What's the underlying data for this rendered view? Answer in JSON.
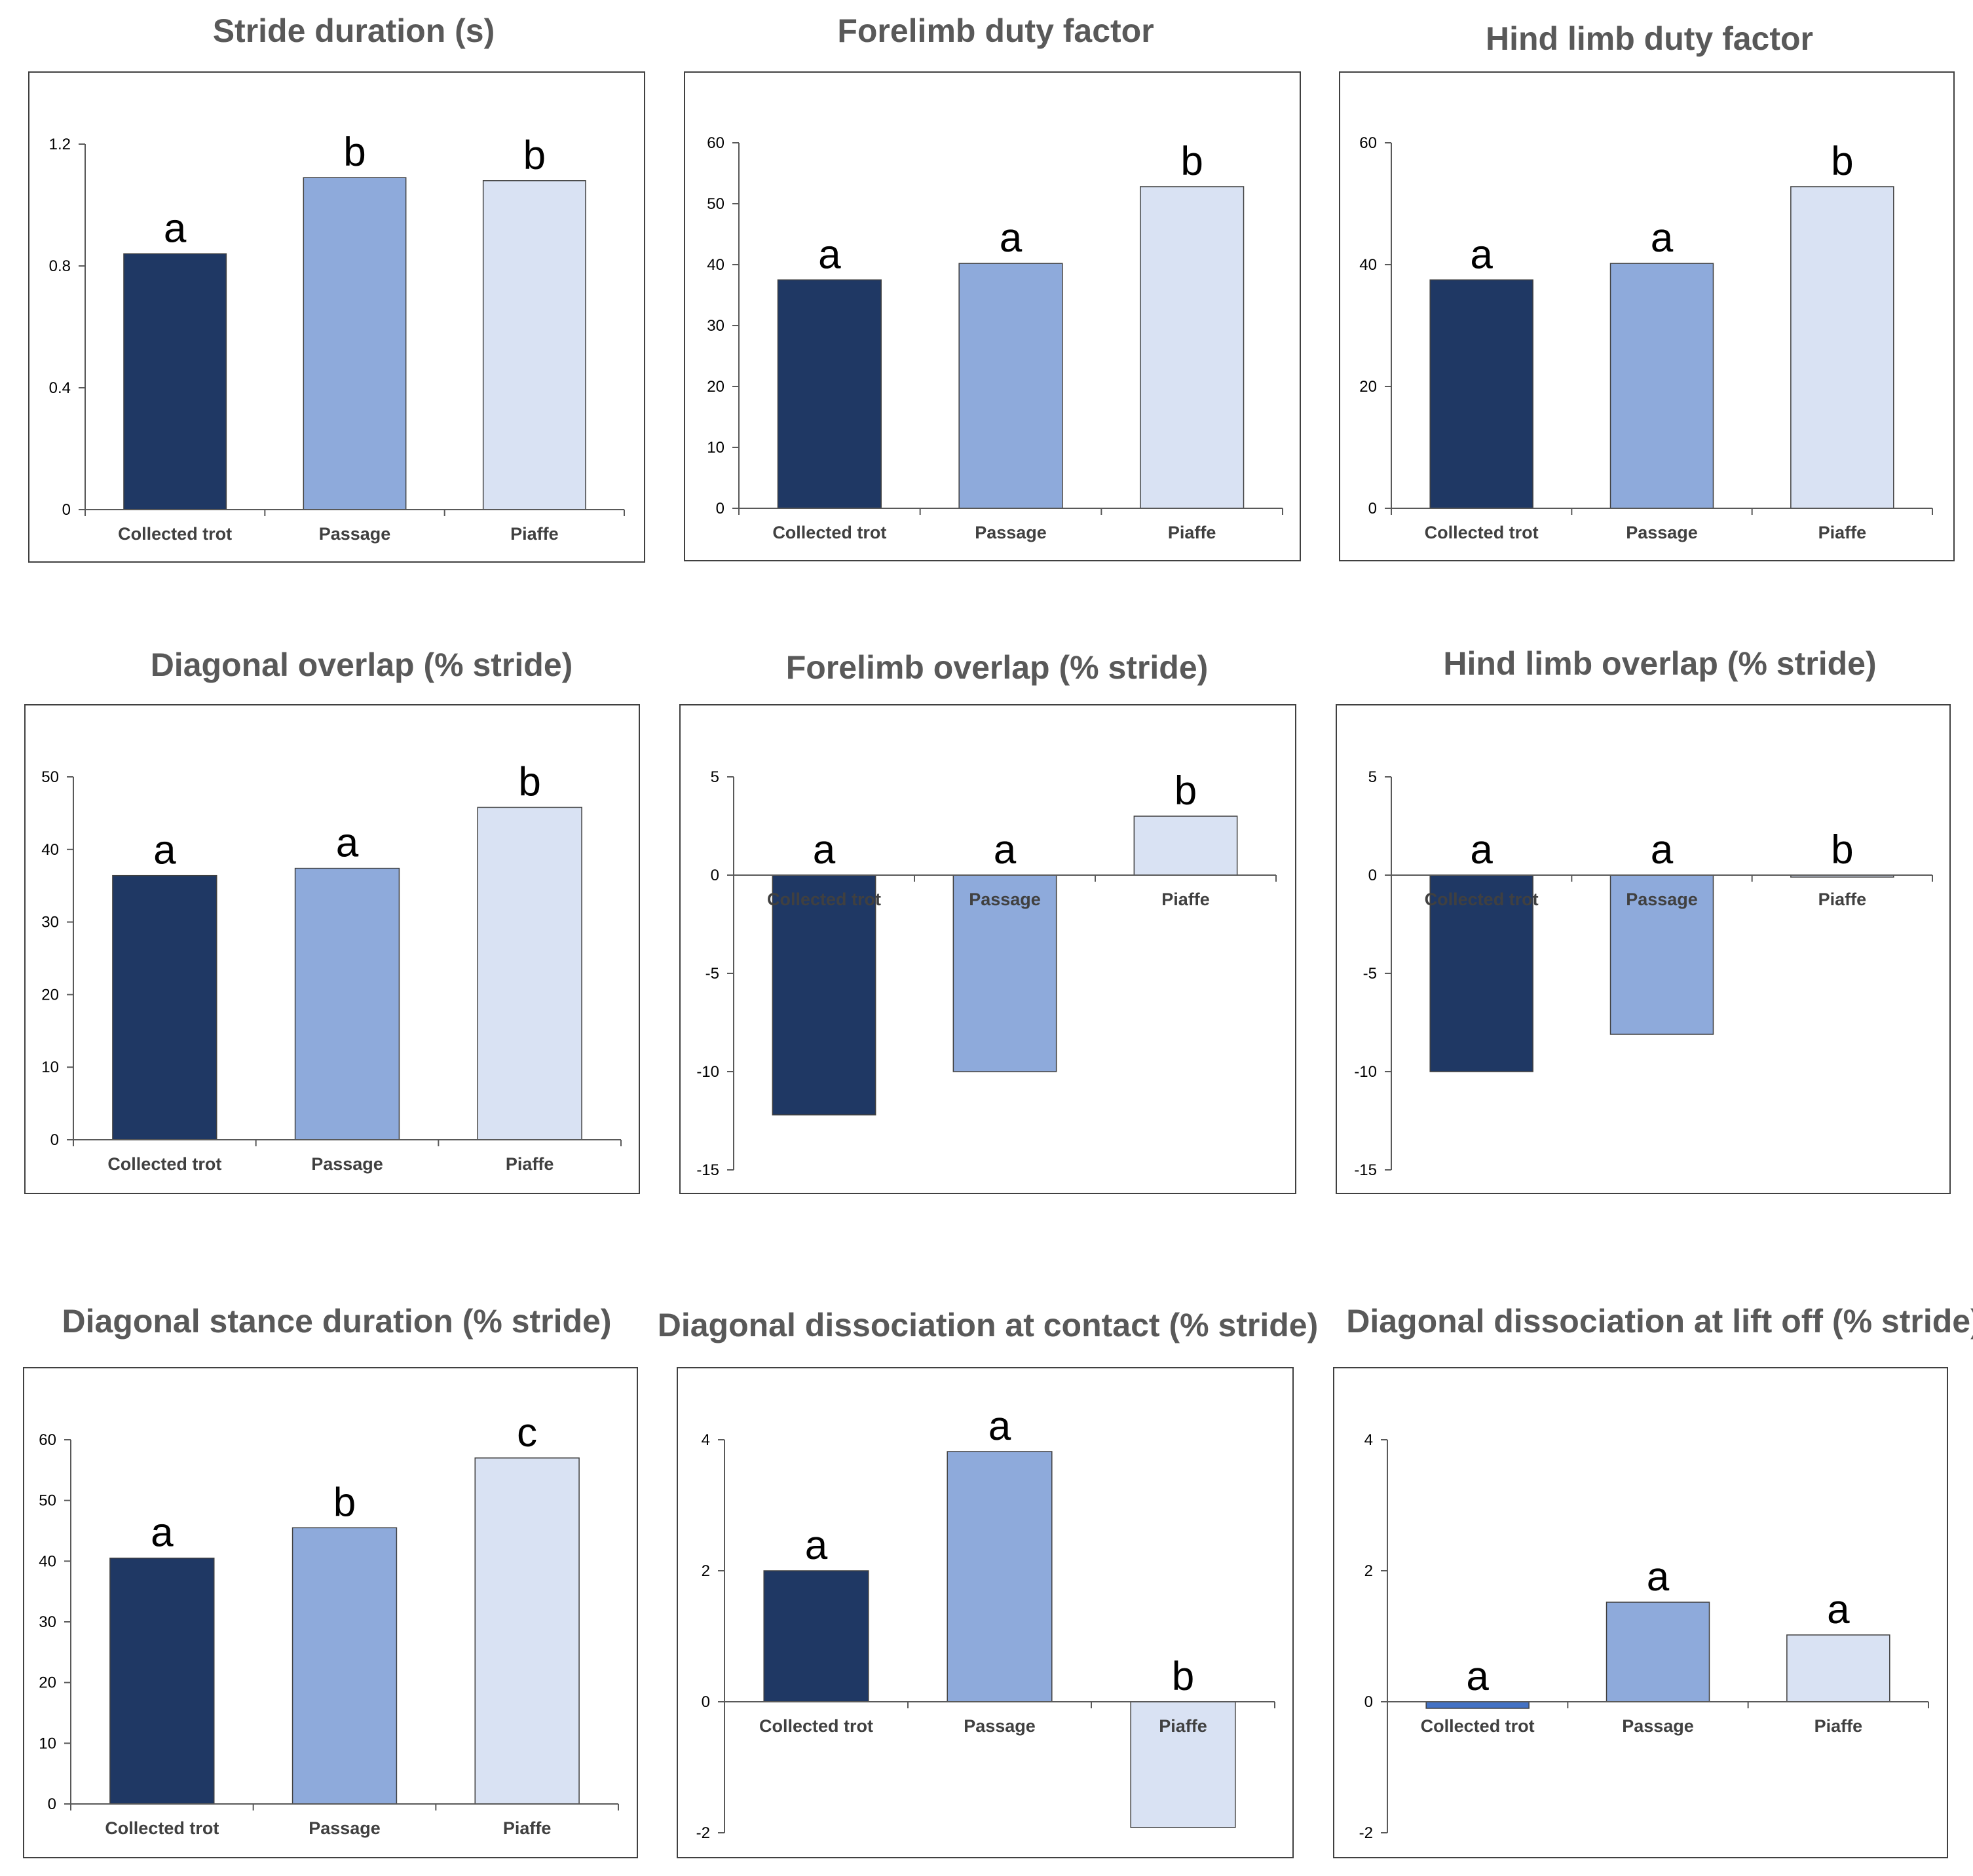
{
  "colors": {
    "collected_trot": "#1f3864",
    "passage": "#8eaadb",
    "piaffe": "#d9e2f3",
    "collected_trot_alt": "#4472c4",
    "bar_outline": "#404040",
    "axis": "#595959",
    "frame": "#404040"
  },
  "chart_data": [
    {
      "type": "bar",
      "title": "Stride duration (s)",
      "categories": [
        "Collected trot",
        "Passage",
        "Piaffe"
      ],
      "values": [
        0.84,
        1.09,
        1.08
      ],
      "labels": [
        "a",
        "b",
        "b"
      ],
      "ylim": [
        0,
        1.2
      ],
      "yticks": [
        0,
        0.4,
        0.8,
        1.2
      ],
      "ytick_labels": [
        "0",
        "0.4",
        "0.8",
        "1.2"
      ],
      "xlabel": "",
      "ylabel": "",
      "grid": false
    },
    {
      "type": "bar",
      "title": "Forelimb duty factor",
      "categories": [
        "Collected trot",
        "Passage",
        "Piaffe"
      ],
      "values": [
        37.5,
        40.2,
        52.8
      ],
      "labels": [
        "a",
        "a",
        "b"
      ],
      "ylim": [
        0,
        60
      ],
      "yticks": [
        0,
        10,
        20,
        30,
        40,
        50,
        60
      ],
      "ytick_labels": [
        "0",
        "10",
        "20",
        "30",
        "40",
        "50",
        "60"
      ],
      "xlabel": "",
      "ylabel": "",
      "grid": false
    },
    {
      "type": "bar",
      "title": "Hind limb duty factor",
      "categories": [
        "Collected trot",
        "Passage",
        "Piaffe"
      ],
      "values": [
        37.5,
        40.2,
        52.8
      ],
      "labels": [
        "a",
        "a",
        "b"
      ],
      "ylim": [
        0,
        60
      ],
      "yticks": [
        0,
        20,
        40,
        60
      ],
      "ytick_labels": [
        "0",
        "20",
        "40",
        "60"
      ],
      "xlabel": "",
      "ylabel": "",
      "grid": false
    },
    {
      "type": "bar",
      "title": "Diagonal overlap (% stride)",
      "categories": [
        "Collected trot",
        "Passage",
        "Piaffe"
      ],
      "values": [
        36.4,
        37.4,
        45.8
      ],
      "labels": [
        "a",
        "a",
        "b"
      ],
      "ylim": [
        0,
        50
      ],
      "yticks": [
        0,
        10,
        20,
        30,
        40,
        50
      ],
      "ytick_labels": [
        "0",
        "10",
        "20",
        "30",
        "40",
        "50"
      ],
      "xlabel": "",
      "ylabel": "",
      "grid": false
    },
    {
      "type": "bar",
      "title": "Forelimb overlap (% stride)",
      "categories": [
        "Collected trot",
        "Passage",
        "Piaffe"
      ],
      "values": [
        -12.2,
        -10.0,
        3.0
      ],
      "labels": [
        "a",
        "a",
        "b"
      ],
      "ylim": [
        -15,
        5
      ],
      "yticks": [
        -15,
        -10,
        -5,
        0,
        5
      ],
      "ytick_labels": [
        "-15",
        "-10",
        "-5",
        "0",
        "5"
      ],
      "xlabel": "",
      "ylabel": "",
      "grid": false
    },
    {
      "type": "bar",
      "title": "Hind limb overlap (% stride)",
      "categories": [
        "Collected trot",
        "Passage",
        "Piaffe"
      ],
      "values": [
        -10.0,
        -8.1,
        -0.1
      ],
      "labels": [
        "a",
        "a",
        "b"
      ],
      "ylim": [
        -15,
        5
      ],
      "yticks": [
        -15,
        -10,
        -5,
        0,
        5
      ],
      "ytick_labels": [
        "-15",
        "-10",
        "-5",
        "0",
        "5"
      ],
      "xlabel": "",
      "ylabel": "",
      "grid": false
    },
    {
      "type": "bar",
      "title": "Diagonal stance duration (% stride)",
      "categories": [
        "Collected trot",
        "Passage",
        "Piaffe"
      ],
      "values": [
        40.5,
        45.5,
        57.0
      ],
      "labels": [
        "a",
        "b",
        "c"
      ],
      "ylim": [
        0,
        60
      ],
      "yticks": [
        0,
        10,
        20,
        30,
        40,
        50,
        60
      ],
      "ytick_labels": [
        "0",
        "10",
        "20",
        "30",
        "40",
        "50",
        "60"
      ],
      "xlabel": "",
      "ylabel": "",
      "grid": false
    },
    {
      "type": "bar",
      "title": "Diagonal dissociation at contact (% stride)",
      "categories": [
        "Collected trot",
        "Passage",
        "Piaffe"
      ],
      "values": [
        2.0,
        3.82,
        -1.92
      ],
      "labels": [
        "a",
        "a",
        "b"
      ],
      "ylim": [
        -2,
        4
      ],
      "yticks": [
        -2,
        0,
        2,
        4
      ],
      "ytick_labels": [
        "-2",
        "0",
        "2",
        "4"
      ],
      "xlabel": "",
      "ylabel": "",
      "grid": false
    },
    {
      "type": "bar",
      "title": "Diagonal dissociation at lift off (% stride)",
      "categories": [
        "Collected trot",
        "Passage",
        "Piaffe"
      ],
      "values": [
        -0.1,
        1.52,
        1.02
      ],
      "labels": [
        "a",
        "a",
        "a"
      ],
      "ylim": [
        -2,
        4
      ],
      "yticks": [
        -2,
        0,
        2,
        4
      ],
      "ytick_labels": [
        "-2",
        "0",
        "2",
        "4"
      ],
      "xlabel": "",
      "ylabel": "",
      "grid": false
    }
  ]
}
